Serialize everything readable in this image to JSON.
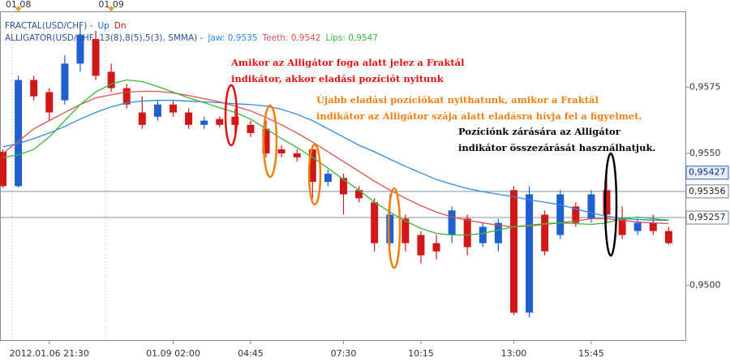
{
  "chart_data": {
    "type": "candlestick",
    "categories": [
      null,
      null,
      null,
      "2012.01.06 21:30",
      null,
      null,
      null,
      null,
      null,
      null,
      null,
      "01.09 02:00",
      null,
      null,
      null,
      null,
      "04:45",
      null,
      null,
      null,
      null,
      null,
      "07:30",
      null,
      null,
      null,
      null,
      "10:15",
      null,
      null,
      null,
      null,
      null,
      "13:00",
      null,
      null,
      null,
      null,
      "15:45",
      null,
      null,
      null,
      null,
      null
    ],
    "top_categories": [
      null,
      "01.08",
      null,
      null,
      null,
      null,
      null,
      "01.09",
      null,
      null,
      null,
      null,
      null,
      null,
      null,
      null,
      null,
      null,
      null,
      null,
      null,
      null,
      null,
      null,
      null,
      null,
      null,
      null,
      null,
      null,
      null,
      null,
      null,
      null,
      null,
      null,
      null,
      null,
      null,
      null,
      null,
      null,
      null,
      null
    ],
    "candles": {
      "open": [
        0.95506,
        0.95376,
        0.95778,
        0.95732,
        0.95701,
        0.9584,
        0.95933,
        0.95809,
        0.95747,
        0.95655,
        0.95639,
        0.95685,
        0.95655,
        0.95608,
        0.9563,
        0.95639,
        0.95608,
        0.95593,
        0.95515,
        0.955,
        0.95515,
        0.95392,
        0.95407,
        0.95361,
        0.95315,
        0.9516,
        0.95253,
        0.95191,
        0.9516,
        0.95191,
        0.95253,
        0.9516,
        0.9516,
        0.95361,
        0.94897,
        0.95268,
        0.95191,
        0.95299,
        0.95253,
        0.95361,
        0.95253,
        0.95206,
        0.95237,
        0.95206
      ],
      "high": [
        0.95515,
        0.95794,
        0.95794,
        0.95747,
        0.95871,
        0.95979,
        0.95964,
        0.9584,
        0.95763,
        0.95716,
        0.95701,
        0.95701,
        0.9567,
        0.95639,
        0.95639,
        0.9567,
        0.95624,
        0.95624,
        0.95531,
        0.95515,
        0.95531,
        0.95438,
        0.95423,
        0.95376,
        0.9533,
        0.95345,
        0.95268,
        0.95206,
        0.95191,
        0.95299,
        0.95268,
        0.95237,
        0.95253,
        0.95376,
        0.95376,
        0.95284,
        0.95361,
        0.95315,
        0.95361,
        0.95438,
        0.95299,
        0.95253,
        0.95268,
        0.95222
      ],
      "low": [
        0.9537,
        0.9537,
        0.95701,
        0.95624,
        0.95685,
        0.95809,
        0.95778,
        0.95732,
        0.9567,
        0.95593,
        0.95624,
        0.95639,
        0.95593,
        0.95593,
        0.95599,
        0.95577,
        0.95562,
        0.95485,
        0.95485,
        0.95469,
        0.9533,
        0.95376,
        0.95268,
        0.95315,
        0.95129,
        0.95145,
        0.95129,
        0.95083,
        0.95098,
        0.9516,
        0.95114,
        0.95145,
        0.95129,
        0.94888,
        0.9488,
        0.95114,
        0.95176,
        0.95222,
        0.95237,
        0.95237,
        0.95176,
        0.95191,
        0.95191,
        0.95154
      ],
      "close": [
        0.95376,
        0.95778,
        0.95716,
        0.95655,
        0.9584,
        0.95948,
        0.95794,
        0.95747,
        0.95685,
        0.95608,
        0.95685,
        0.95655,
        0.95608,
        0.95624,
        0.95608,
        0.95608,
        0.95577,
        0.955,
        0.955,
        0.95485,
        0.95392,
        0.95423,
        0.95345,
        0.9533,
        0.9516,
        0.95268,
        0.9516,
        0.95114,
        0.95129,
        0.95284,
        0.95145,
        0.95222,
        0.95237,
        0.94897,
        0.95345,
        0.95129,
        0.95345,
        0.95237,
        0.95345,
        0.95268,
        0.95191,
        0.95237,
        0.95206,
        0.9516
      ]
    },
    "up_color": "#1f5fd0",
    "down_color": "#d01818",
    "series": [
      {
        "name": "Jaw: 0,9535",
        "color": "#2a8be8",
        "values": [
          0.95525,
          0.95537,
          0.95556,
          0.95577,
          0.95602,
          0.9563,
          0.95655,
          0.95676,
          0.95692,
          0.95698,
          0.95701,
          0.95701,
          0.95698,
          0.95695,
          0.95692,
          0.95688,
          0.95685,
          0.95679,
          0.95667,
          0.95648,
          0.95624,
          0.95593,
          0.95562,
          0.95531,
          0.95506,
          0.95478,
          0.95451,
          0.95426,
          0.95401,
          0.95383,
          0.95367,
          0.95355,
          0.95345,
          0.95336,
          0.95324,
          0.95315,
          0.95305,
          0.9529,
          0.95274,
          0.95262,
          0.95253,
          0.9525,
          0.95247,
          0.95247
        ]
      },
      {
        "name": "Teeth: 0,9542",
        "color": "#e05050",
        "values": [
          0.955,
          0.95546,
          0.95593,
          0.95624,
          0.95655,
          0.95685,
          0.9571,
          0.95722,
          0.95732,
          0.95735,
          0.95735,
          0.95729,
          0.95719,
          0.95707,
          0.95695,
          0.95679,
          0.95661,
          0.95636,
          0.95608,
          0.95577,
          0.95543,
          0.95506,
          0.95469,
          0.95432,
          0.95395,
          0.95361,
          0.9533,
          0.95302,
          0.95278,
          0.95259,
          0.95247,
          0.95237,
          0.95228,
          0.95222,
          0.95225,
          0.95231,
          0.95237,
          0.95244,
          0.95253,
          0.95253,
          0.95247,
          0.9524,
          0.95237,
          0.95234
        ]
      },
      {
        "name": "Lips: 0,9547",
        "color": "#3ab83a",
        "values": [
          0.95485,
          0.95494,
          0.95515,
          0.95562,
          0.95624,
          0.95685,
          0.95732,
          0.95763,
          0.95778,
          0.95772,
          0.95753,
          0.95732,
          0.9571,
          0.95692,
          0.95673,
          0.95655,
          0.9563,
          0.95593,
          0.95556,
          0.95522,
          0.95485,
          0.95444,
          0.95401,
          0.95361,
          0.95315,
          0.95278,
          0.95244,
          0.95216,
          0.95197,
          0.95191,
          0.95191,
          0.95197,
          0.9521,
          0.95222,
          0.95228,
          0.95234,
          0.95237,
          0.95234,
          0.95231,
          0.95237,
          0.95253,
          0.95259,
          0.95253,
          0.95247
        ]
      }
    ],
    "indicators": {
      "fractal_title": "FRACTAL(USD/CHF) -",
      "fractal_up": "Up",
      "fractal_down": "Dn",
      "alligator_title": "ALLIGATOR(USD/CHF, 13(8),8(5),5(3), SMMA) -"
    },
    "ylim": [
      0.9479,
      0.9605
    ],
    "yticks": [
      {
        "value": 0.95,
        "label": "0,9500"
      },
      {
        "value": 0.955,
        "label": "0,9550"
      },
      {
        "value": 0.9575,
        "label": "0,9575"
      }
    ],
    "price_labels": [
      {
        "value": 0.95427,
        "label": "0,95427"
      }
    ],
    "level_lines": [
      {
        "value": 0.95356,
        "label": "0,95356"
      },
      {
        "value": 0.95257,
        "label": "0,95257"
      }
    ],
    "annotations": [
      {
        "color": "#e01010",
        "lines": [
          "Amikor az Alligátor foga alatt jelez a Fraktál",
          "indikátor, akkor eladási pozíciót nyitunk"
        ]
      },
      {
        "color": "#f07f10",
        "lines": [
          "Újabb eladási pozíciókat nyithatunk, amikor a Fraktál",
          "indikátor az Alligátor szája alatt eladásra hívja fel a figyelmet."
        ]
      },
      {
        "color": "#000000",
        "lines": [
          "Pozíciónk zárására az Alligátor",
          "indikátor összezárását használhatjuk."
        ]
      }
    ]
  }
}
